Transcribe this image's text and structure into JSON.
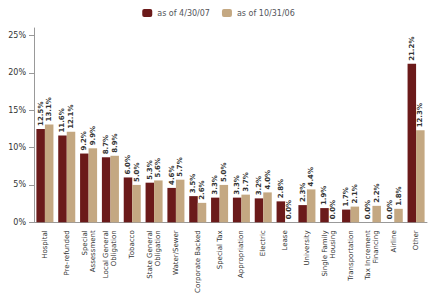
{
  "chart_data": {
    "type": "bar",
    "categories": [
      "Hospital",
      "Pre-refunded",
      "Special\nAssessment",
      "Local General\nObligation",
      "Tobacco",
      "State General\nObligation",
      "Water/Sewer",
      "Corporate Backed",
      "Special Tax",
      "Appropriation",
      "Electric",
      "Lease",
      "University",
      "Single Family\nHousing",
      "Transportation",
      "Tax Increment\nFinancing",
      "Airline",
      "Other"
    ],
    "series": [
      {
        "name": "as of 4/30/07",
        "color": "#6b1a1a",
        "values": [
          12.5,
          11.6,
          9.2,
          8.7,
          6.0,
          5.3,
          4.6,
          3.5,
          3.3,
          3.3,
          3.2,
          2.8,
          2.3,
          1.9,
          1.7,
          0.0,
          0.0,
          21.2
        ],
        "value_labels": [
          "12.5%",
          "11.6%",
          "9.2%",
          "8.7%",
          "6.0%",
          "5.3%",
          "4.6%",
          "3.5%",
          "3.3%",
          "3.3%",
          "3.2%",
          "2.8%",
          "2.3%",
          "1.9%",
          "1.7%",
          "0.0%",
          "0.0%",
          "21.2%"
        ]
      },
      {
        "name": "as of 10/31/06",
        "color": "#c4a882",
        "values": [
          13.1,
          12.1,
          9.9,
          8.9,
          5.0,
          5.6,
          5.7,
          2.6,
          5.0,
          3.7,
          4.0,
          0.0,
          4.4,
          0.0,
          2.1,
          2.2,
          1.8,
          12.3
        ],
        "value_labels": [
          "13.1%",
          "12.1%",
          "9.9%",
          "8.9%",
          "5.0%",
          "5.6%",
          "5.7%",
          "2.6%",
          "5.0%",
          "3.7%",
          "4.0%",
          "0.0%",
          "4.4%",
          "0.0%",
          "2.1%",
          "2.2%",
          "1.8%",
          "12.3%"
        ]
      }
    ],
    "ylim": [
      0,
      26
    ],
    "yticks": [
      {
        "value": 0,
        "label": "0%"
      },
      {
        "value": 5,
        "label": "5%"
      },
      {
        "value": 10,
        "label": "10%"
      },
      {
        "value": 15,
        "label": "15%"
      },
      {
        "value": 20,
        "label": "20%"
      },
      {
        "value": 25,
        "label": "25%"
      }
    ],
    "grid": false,
    "legend": "top",
    "data_labels": true
  }
}
